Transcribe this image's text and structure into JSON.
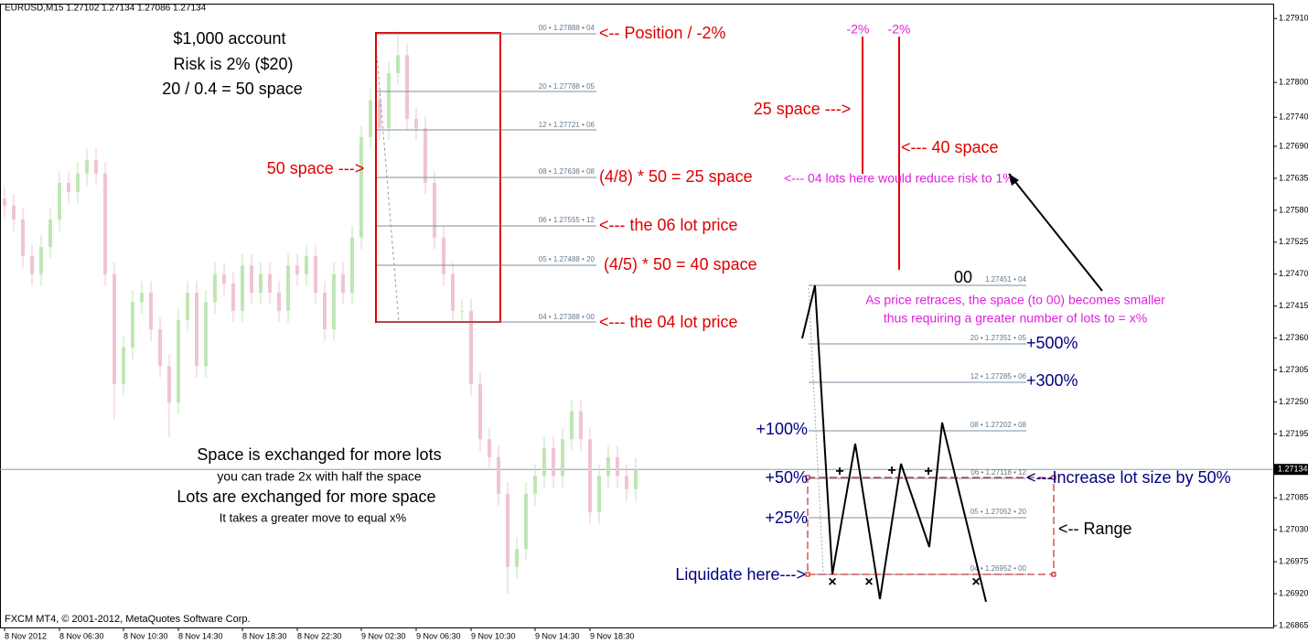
{
  "chart_data": {
    "type": "candlestick",
    "title": "EURUSD,M15  1.27102 1.27134 1.27086 1.27134",
    "footer": "FXCM MT4, © 2001-2012, MetaQuotes Software Corp.",
    "categories": [
      "8 Nov 2012",
      null,
      null,
      null,
      null,
      null,
      "8 Nov 06:30",
      null,
      null,
      null,
      null,
      null,
      null,
      "8 Nov 10:30",
      null,
      null,
      null,
      null,
      null,
      "8 Nov 14:30",
      null,
      null,
      null,
      null,
      null,
      null,
      "8 Nov 18:30",
      null,
      null,
      null,
      null,
      null,
      "8 Nov 22:30",
      null,
      null,
      null,
      null,
      null,
      null,
      "9 Nov 02:30",
      null,
      null,
      null,
      null,
      null,
      "9 Nov 06:30",
      null,
      null,
      null,
      null,
      null,
      "9 Nov 10:30",
      null,
      null,
      null,
      null,
      null,
      null,
      "9 Nov 14:30",
      null,
      null,
      null,
      null,
      null,
      "9 Nov 18:30",
      null,
      null,
      null,
      null,
      null
    ],
    "open": [
      1.276,
      1.27588,
      1.27564,
      1.27501,
      1.2747,
      1.27517,
      1.27564,
      1.27627,
      1.27611,
      1.27643,
      1.27666,
      1.27643,
      1.2747,
      1.27281,
      1.27344,
      1.27422,
      1.27438,
      1.27375,
      1.27312,
      1.27249,
      1.27391,
      1.27438,
      1.27312,
      1.27422,
      1.2747,
      1.27454,
      1.27407,
      1.27485,
      1.27438,
      1.2747,
      1.27438,
      1.27407,
      1.27485,
      1.2747,
      1.27501,
      1.27438,
      1.27375,
      1.2747,
      1.27438,
      1.27533,
      1.27706,
      1.27769,
      1.27721,
      1.27816,
      1.27847,
      1.27737,
      1.27721,
      1.27627,
      1.27533,
      1.2747,
      1.27407,
      1.27407,
      1.27281,
      1.27186,
      1.27155,
      1.27092,
      1.26966,
      1.26997,
      1.27092,
      1.27123,
      1.27171,
      1.27123,
      1.27186,
      1.27234,
      1.27186,
      1.2706,
      1.27123,
      1.27155,
      1.27123,
      1.271
    ],
    "high": [
      1.2762,
      1.27608,
      1.27584,
      1.27521,
      1.27537,
      1.27584,
      1.27647,
      1.27647,
      1.27663,
      1.27686,
      1.27686,
      1.27663,
      1.2749,
      1.27364,
      1.27442,
      1.27458,
      1.27458,
      1.27395,
      1.27332,
      1.27411,
      1.27458,
      1.27458,
      1.27442,
      1.2749,
      1.2749,
      1.27474,
      1.27505,
      1.27505,
      1.2749,
      1.2749,
      1.27458,
      1.27505,
      1.27505,
      1.27521,
      1.27521,
      1.27458,
      1.2749,
      1.2749,
      1.27553,
      1.27726,
      1.27789,
      1.27789,
      1.27836,
      1.27888,
      1.27867,
      1.27757,
      1.27741,
      1.27647,
      1.27553,
      1.2749,
      1.27427,
      1.27427,
      1.27301,
      1.27206,
      1.27175,
      1.27112,
      1.27017,
      1.27112,
      1.27143,
      1.27191,
      1.27191,
      1.27206,
      1.27254,
      1.27254,
      1.27206,
      1.27143,
      1.27175,
      1.27175,
      1.27143,
      1.27154
    ],
    "low": [
      1.27568,
      1.27544,
      1.27481,
      1.2745,
      1.2745,
      1.27497,
      1.27544,
      1.27591,
      1.27591,
      1.27623,
      1.27623,
      1.2745,
      1.2722,
      1.27261,
      1.27324,
      1.27402,
      1.27355,
      1.27292,
      1.2719,
      1.27229,
      1.27371,
      1.27292,
      1.27292,
      1.27402,
      1.27434,
      1.27387,
      1.27387,
      1.27418,
      1.27418,
      1.27418,
      1.27387,
      1.27387,
      1.2745,
      1.2745,
      1.27418,
      1.27355,
      1.27355,
      1.27418,
      1.27418,
      1.27513,
      1.27686,
      1.27701,
      1.27701,
      1.27796,
      1.27717,
      1.27701,
      1.27607,
      1.27513,
      1.2745,
      1.27387,
      1.27387,
      1.27261,
      1.27166,
      1.27135,
      1.27072,
      1.2692,
      1.26946,
      1.26977,
      1.27072,
      1.27103,
      1.27103,
      1.27103,
      1.27166,
      1.27166,
      1.2704,
      1.2704,
      1.27103,
      1.27103,
      1.2708,
      1.2708
    ],
    "close": [
      1.27588,
      1.27564,
      1.27501,
      1.2747,
      1.27517,
      1.27564,
      1.27627,
      1.27611,
      1.27643,
      1.27666,
      1.27643,
      1.2747,
      1.27281,
      1.27344,
      1.27422,
      1.27438,
      1.27375,
      1.27312,
      1.27249,
      1.27391,
      1.27438,
      1.27312,
      1.27422,
      1.2747,
      1.27454,
      1.27407,
      1.27485,
      1.27438,
      1.2747,
      1.27438,
      1.27407,
      1.27485,
      1.2747,
      1.27501,
      1.27438,
      1.27375,
      1.2747,
      1.27438,
      1.27533,
      1.27706,
      1.27769,
      1.27721,
      1.27816,
      1.27847,
      1.27737,
      1.27721,
      1.27627,
      1.27533,
      1.2747,
      1.27407,
      1.27407,
      1.27281,
      1.27186,
      1.27155,
      1.27092,
      1.26966,
      1.26997,
      1.27092,
      1.27123,
      1.27171,
      1.27123,
      1.27186,
      1.27234,
      1.27186,
      1.2706,
      1.27123,
      1.27155,
      1.27123,
      1.271,
      1.27134
    ],
    "up_color": "#bfe6b4",
    "down_color": "#f0c4d0",
    "ylim": [
      1.26862,
      1.27934
    ],
    "yticks": [
      {
        "value": 1.2791,
        "label": "1.27910"
      },
      {
        "value": 1.278,
        "label": "1.27800"
      },
      {
        "value": 1.2774,
        "label": "1.27740"
      },
      {
        "value": 1.2769,
        "label": "1.27690"
      },
      {
        "value": 1.27635,
        "label": "1.27635"
      },
      {
        "value": 1.2758,
        "label": "1.27580"
      },
      {
        "value": 1.27525,
        "label": "1.27525"
      },
      {
        "value": 1.2747,
        "label": "1.27470"
      },
      {
        "value": 1.27415,
        "label": "1.27415"
      },
      {
        "value": 1.2736,
        "label": "1.27360"
      },
      {
        "value": 1.27305,
        "label": "1.27305"
      },
      {
        "value": 1.2725,
        "label": "1.27250"
      },
      {
        "value": 1.27195,
        "label": "1.27195"
      },
      {
        "value": 1.27085,
        "label": "1.27085"
      },
      {
        "value": 1.2703,
        "label": "1.27030"
      },
      {
        "value": 1.26975,
        "label": "1.26975"
      },
      {
        "value": 1.2692,
        "label": "1.26920"
      },
      {
        "value": 1.26865,
        "label": "1.26865"
      }
    ],
    "current_price": {
      "value": 1.27134,
      "label": "1.27134"
    }
  },
  "annotations": {
    "account": [
      "$1,000 account",
      "Risk is 2% ($20)",
      "20 / 0.4 = 50 space"
    ],
    "space50": "50 space --->",
    "fib_left": [
      "00 • 1.27888 • 04",
      "20 • 1.27788 • 05",
      "12 • 1.27721 • 06",
      "08 • 1.27638 • 08",
      "06 • 1.27555 • 12",
      "05 • 1.27488 • 20",
      "04 • 1.27388 • 00"
    ],
    "notes_red": [
      "<-- Position / -2%",
      "(4/8) * 50 = 25 space",
      "<--- the 06 lot price",
      "(4/5) * 50 = 40 space",
      "<--- the 04 lot price"
    ],
    "minus2": "-2%",
    "space25": "25 space --->",
    "space40": "<--- 40 space",
    "risk1": "<--- 04 lots here would reduce risk to 1%",
    "zero": "00",
    "fib_right": [
      "1.27451 • 04",
      "20 • 1.27351 • 05",
      "12 • 1.27285 • 06",
      "08 • 1.27202 • 08",
      "06 • 1.27118 • 12",
      "05 • 1.27052 • 20",
      "04 • 1.26952 • 00"
    ],
    "retrace": [
      "As price retraces, the space (to 00) becomes smaller",
      "thus requiring a greater number of lots to = x%"
    ],
    "gains": [
      "+500%",
      "+300%",
      "+100%",
      "+50%",
      "+25%"
    ],
    "liquidate": "Liquidate here--->",
    "increase": "<---Increase lot size by 50%",
    "range": "<-- Range",
    "bottom": [
      "Space is exchanged for more lots",
      "you can trade 2x with half the space",
      "Lots are exchanged for more space",
      "It takes a greater move to equal x%"
    ],
    "plus": "+",
    "cross": "×"
  }
}
